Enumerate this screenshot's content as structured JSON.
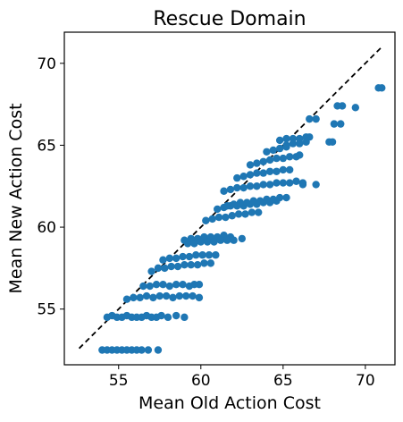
{
  "chart_data": {
    "type": "scatter",
    "title": "Rescue Domain",
    "xlabel": "Mean Old Action Cost",
    "ylabel": "Mean New Action Cost",
    "xlim": [
      51.7,
      71.8
    ],
    "ylim": [
      51.6,
      71.9
    ],
    "xticks": [
      55,
      60,
      65,
      70
    ],
    "yticks": [
      55,
      60,
      65,
      70
    ],
    "grid": false,
    "marker_color": "#1f77b4",
    "reference_line": {
      "style": "dashed",
      "color": "#000000",
      "points": [
        [
          52.6,
          52.6
        ],
        [
          71.0,
          71.0
        ]
      ]
    },
    "series": [
      {
        "x": [
          54.0,
          54.3,
          54.6,
          54.9,
          55.2,
          55.5,
          55.8,
          56.1,
          56.4,
          56.8,
          57.4,
          54.3,
          54.6,
          54.9,
          55.2,
          55.5,
          55.8,
          56.1,
          56.4,
          56.7,
          57.0,
          57.3,
          57.6,
          58.0,
          58.5,
          59.0,
          55.5,
          55.9,
          56.3,
          56.7,
          57.1,
          57.5,
          57.9,
          58.3,
          58.7,
          59.1,
          59.5,
          59.9,
          56.5,
          56.9,
          57.3,
          57.7,
          58.1,
          58.5,
          58.9,
          59.3,
          59.6,
          59.9,
          57.0,
          57.4,
          57.8,
          58.2,
          58.6,
          59.0,
          59.4,
          59.8,
          60.2,
          60.6,
          57.7,
          58.1,
          58.5,
          58.9,
          59.3,
          59.7,
          60.1,
          60.5,
          60.9,
          59.0,
          59.4,
          59.8,
          60.2,
          60.6,
          61.0,
          61.4,
          61.8,
          59.2,
          59.6,
          60.0,
          60.4,
          60.8,
          61.2,
          61.6,
          62.0,
          62.5,
          60.3,
          60.7,
          61.1,
          61.5,
          61.9,
          62.3,
          62.7,
          63.1,
          63.5,
          61.0,
          61.4,
          61.8,
          62.2,
          62.6,
          63.0,
          63.4,
          63.8,
          64.2,
          64.6,
          61.4,
          61.8,
          62.2,
          62.6,
          63.0,
          63.4,
          63.8,
          64.2,
          64.6,
          65.0,
          65.4,
          65.8,
          66.2,
          61.6,
          62.0,
          62.4,
          62.8,
          63.2,
          63.6,
          64.0,
          64.4,
          64.8,
          65.2,
          66.2,
          67.0,
          62.2,
          62.6,
          63.0,
          63.4,
          63.8,
          64.2,
          64.6,
          65.0,
          65.4,
          63.0,
          63.4,
          63.8,
          64.2,
          64.6,
          65.0,
          65.4,
          65.8,
          66.0,
          64.0,
          64.4,
          64.8,
          65.2,
          64.8,
          65.2,
          65.6,
          66.0,
          66.4,
          66.6,
          65.2,
          65.6,
          66.0,
          66.4,
          67.8,
          68.0,
          66.6,
          67.0,
          68.1,
          68.5,
          69.4,
          68.3,
          68.6,
          70.8,
          71.0
        ],
        "y": [
          52.5,
          52.5,
          52.5,
          52.5,
          52.5,
          52.5,
          52.5,
          52.5,
          52.5,
          52.5,
          52.5,
          54.5,
          54.6,
          54.5,
          54.5,
          54.6,
          54.5,
          54.5,
          54.5,
          54.6,
          54.5,
          54.5,
          54.6,
          54.5,
          54.6,
          54.5,
          55.6,
          55.7,
          55.7,
          55.8,
          55.7,
          55.8,
          55.8,
          55.7,
          55.8,
          55.8,
          55.8,
          55.7,
          56.4,
          56.4,
          56.5,
          56.5,
          56.4,
          56.5,
          56.5,
          56.4,
          56.5,
          56.5,
          57.3,
          57.5,
          57.5,
          57.6,
          57.6,
          57.7,
          57.7,
          57.7,
          57.8,
          57.8,
          58.0,
          58.1,
          58.1,
          58.2,
          58.2,
          58.3,
          58.3,
          58.3,
          58.3,
          59.2,
          59.3,
          59.3,
          59.4,
          59.4,
          59.4,
          59.5,
          59.4,
          59.0,
          59.0,
          59.1,
          59.1,
          59.1,
          59.2,
          59.2,
          59.2,
          59.3,
          60.4,
          60.5,
          60.6,
          60.6,
          60.7,
          60.8,
          60.8,
          60.9,
          60.9,
          61.1,
          61.2,
          61.3,
          61.3,
          61.3,
          61.4,
          61.4,
          61.5,
          61.5,
          61.6,
          62.2,
          62.3,
          62.4,
          62.4,
          62.5,
          62.5,
          62.6,
          62.6,
          62.7,
          62.7,
          62.7,
          62.8,
          62.7,
          61.3,
          61.4,
          61.5,
          61.5,
          61.6,
          61.6,
          61.7,
          61.7,
          61.8,
          61.8,
          62.6,
          62.6,
          63.0,
          63.1,
          63.2,
          63.3,
          63.3,
          63.4,
          63.4,
          63.5,
          63.5,
          63.8,
          63.9,
          64.0,
          64.1,
          64.2,
          64.2,
          64.3,
          64.3,
          64.4,
          64.6,
          64.7,
          64.8,
          64.9,
          65.3,
          65.4,
          65.4,
          65.4,
          65.5,
          65.5,
          65.0,
          65.1,
          65.1,
          65.2,
          65.2,
          65.2,
          66.6,
          66.6,
          66.3,
          66.3,
          67.3,
          67.4,
          67.4,
          68.5,
          68.5
        ]
      }
    ]
  }
}
